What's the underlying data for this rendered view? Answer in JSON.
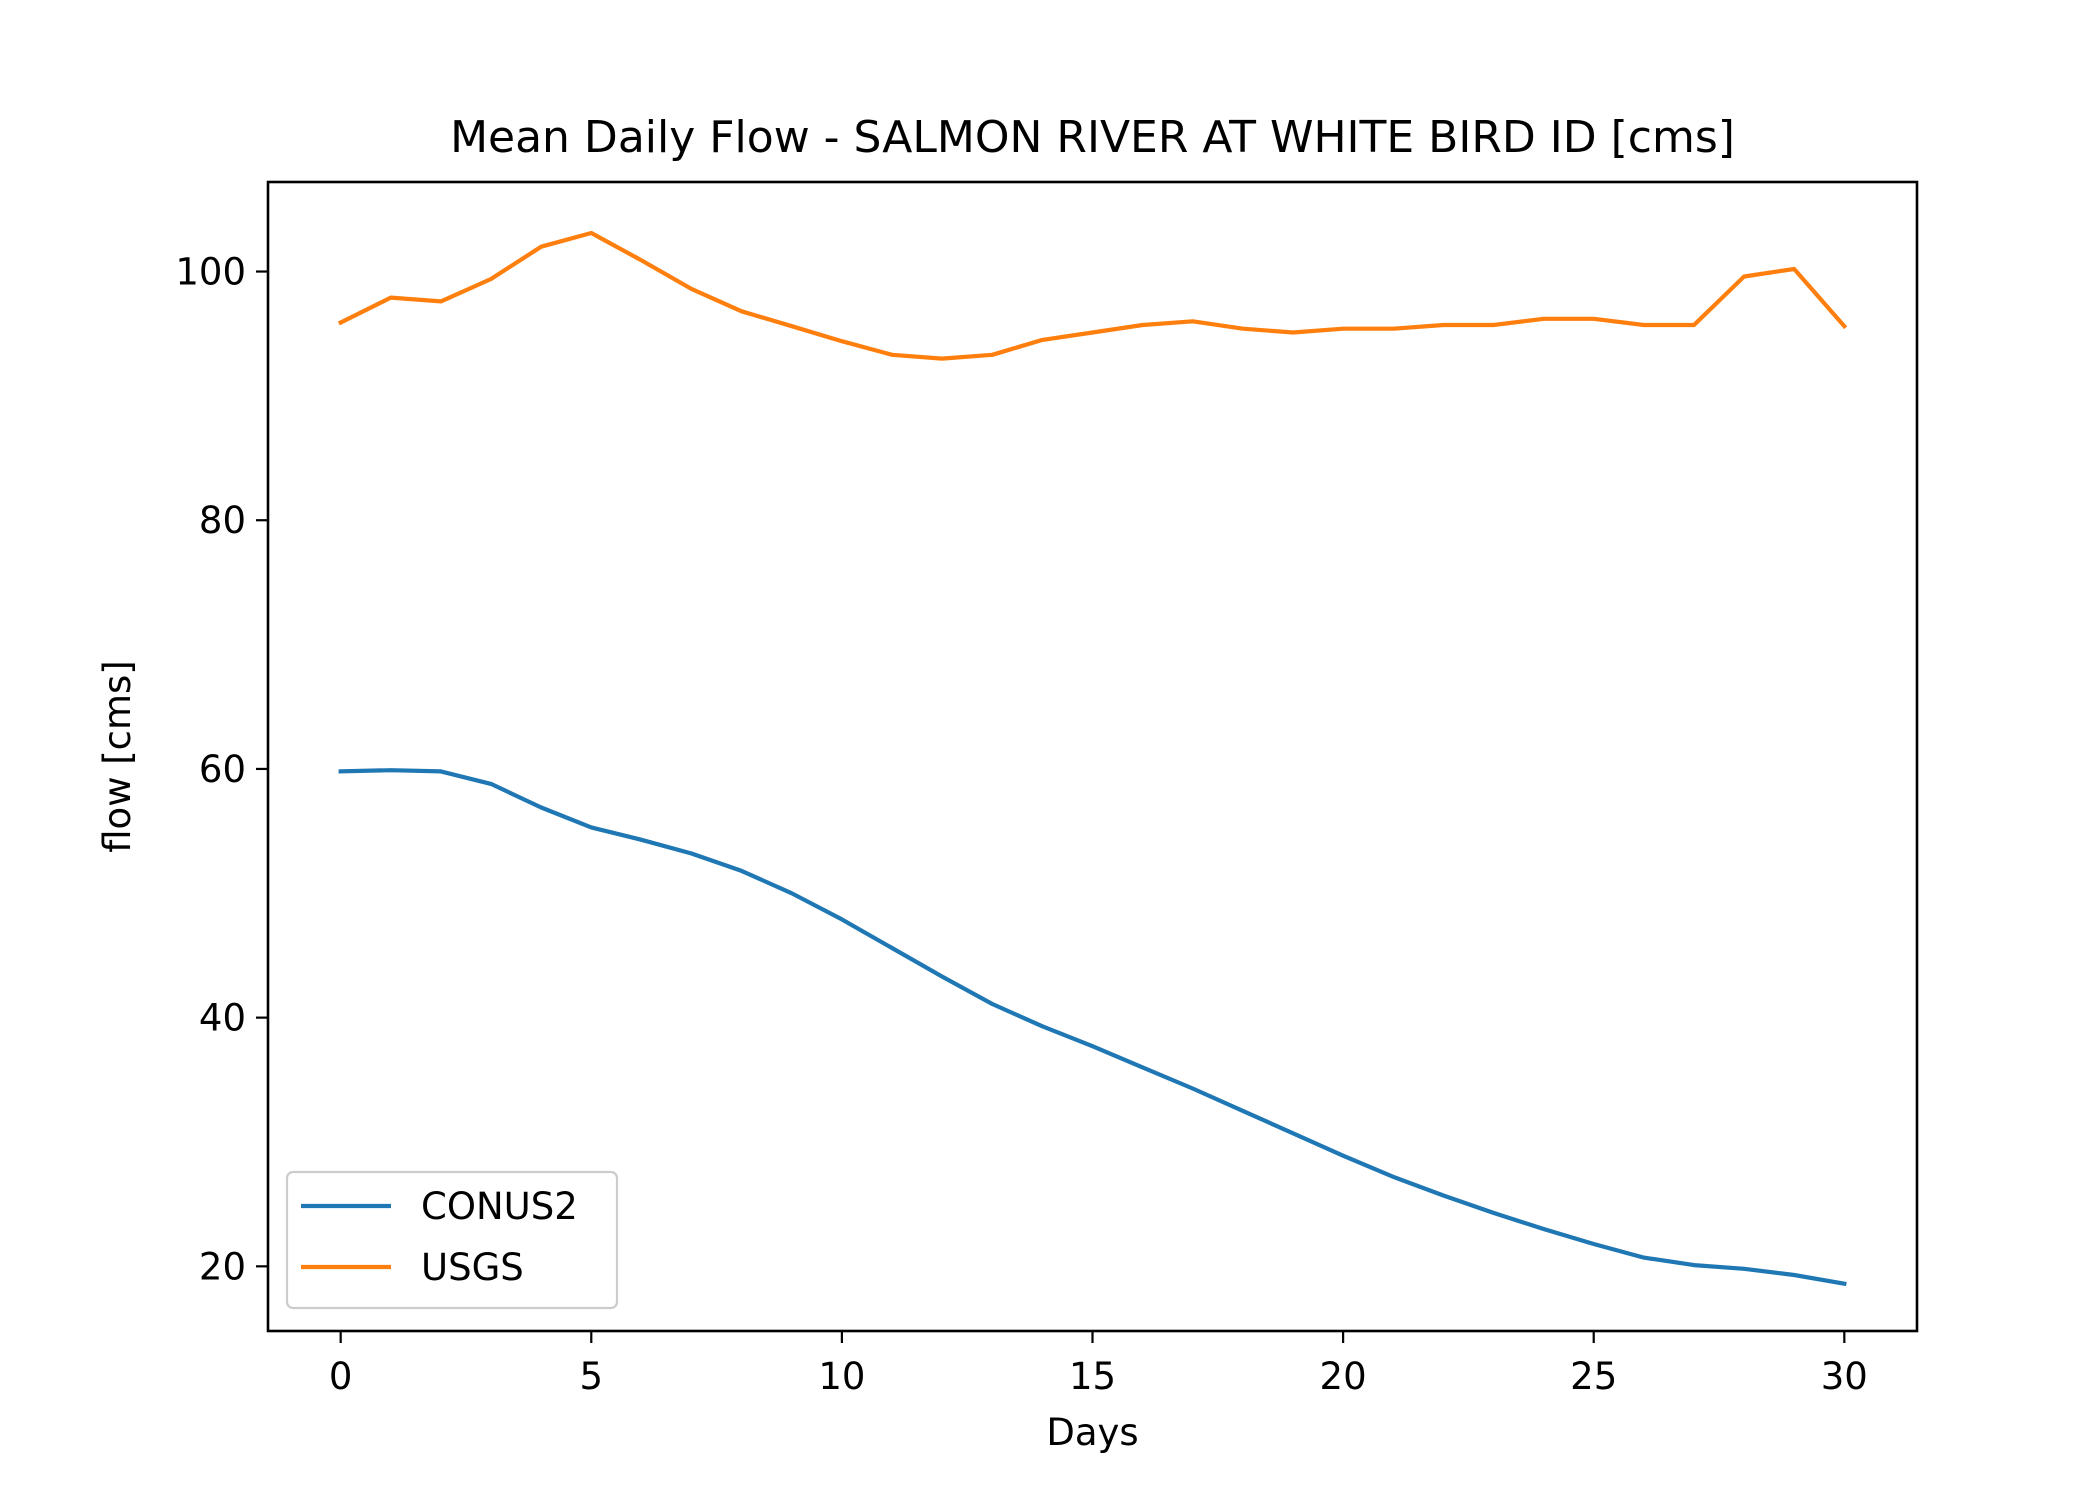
{
  "chart_data": {
    "type": "line",
    "title": "Mean Daily Flow - SALMON RIVER AT WHITE BIRD ID [cms]",
    "xlabel": "Days",
    "ylabel": "flow [cms]",
    "xlim": [
      -1.45,
      31.45
    ],
    "ylim": [
      14.8,
      107.2
    ],
    "xticks": [
      0,
      5,
      10,
      15,
      20,
      25,
      30
    ],
    "yticks": [
      20,
      40,
      60,
      80,
      100
    ],
    "grid": false,
    "legend_position": "lower-left",
    "x": [
      0,
      1,
      2,
      3,
      4,
      5,
      6,
      7,
      8,
      9,
      10,
      11,
      12,
      13,
      14,
      15,
      16,
      17,
      18,
      19,
      20,
      21,
      22,
      23,
      24,
      25,
      26,
      27,
      28,
      29,
      30
    ],
    "series": [
      {
        "name": "CONUS2",
        "color": "#1f77b4",
        "values": [
          59.8,
          59.9,
          59.8,
          58.8,
          56.9,
          55.3,
          54.3,
          53.2,
          51.8,
          50.0,
          47.9,
          45.6,
          43.3,
          41.1,
          39.3,
          37.7,
          36.0,
          34.3,
          32.5,
          30.7,
          28.9,
          27.2,
          25.7,
          24.3,
          23.0,
          21.8,
          20.7,
          20.1,
          19.8,
          19.3,
          18.6
        ]
      },
      {
        "name": "USGS",
        "color": "#ff7f0e",
        "values": [
          95.9,
          97.9,
          97.6,
          99.4,
          102.0,
          103.1,
          100.9,
          98.6,
          96.8,
          95.6,
          94.4,
          93.3,
          93.0,
          93.3,
          94.5,
          95.1,
          95.7,
          96.0,
          95.4,
          95.1,
          95.4,
          95.4,
          95.7,
          95.7,
          96.2,
          96.2,
          95.7,
          95.7,
          99.6,
          100.2,
          95.6
        ]
      }
    ]
  }
}
